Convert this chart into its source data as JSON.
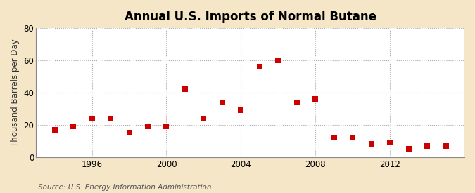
{
  "title": "Annual U.S. Imports of Normal Butane",
  "ylabel": "Thousand Barrels per Day",
  "source": "Source: U.S. Energy Information Administration",
  "figure_bg_color": "#f5e6c8",
  "axes_bg_color": "#ffffff",
  "years": [
    1994,
    1995,
    1996,
    1997,
    1998,
    1999,
    2000,
    2001,
    2002,
    2003,
    2004,
    2005,
    2006,
    2007,
    2008,
    2009,
    2010,
    2011,
    2012,
    2013,
    2014,
    2015
  ],
  "values": [
    17,
    19,
    24,
    24,
    15,
    19,
    19,
    42,
    24,
    34,
    29,
    56,
    60,
    34,
    36,
    12,
    12,
    8,
    9,
    5,
    7,
    7
  ],
  "marker_color": "#cc0000",
  "marker_size": 36,
  "ylim": [
    0,
    80
  ],
  "yticks": [
    0,
    20,
    40,
    60,
    80
  ],
  "xlim": [
    1993.0,
    2016.0
  ],
  "xticks": [
    1996,
    2000,
    2004,
    2008,
    2012
  ],
  "grid_color": "#aaaaaa",
  "grid_style": "--",
  "title_fontsize": 12,
  "label_fontsize": 8.5,
  "tick_fontsize": 8.5,
  "source_fontsize": 7.5
}
